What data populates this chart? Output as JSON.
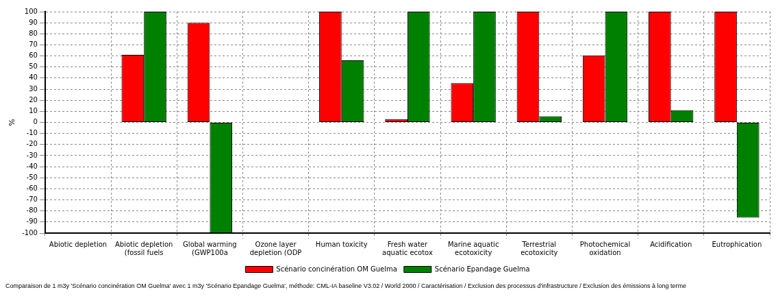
{
  "chart_data": {
    "type": "bar",
    "ylabel": "%",
    "categories": [
      "Abiotic depletion",
      "Abiotic depletion\n(fossil fuels",
      "Global warming\n(GWP100a",
      "Ozone layer\ndepletion (ODP",
      "Human toxicity",
      "Fresh water\naquatic ecotox",
      "Marine aquatic\necotoxicity",
      "Terrestrial\necotoxicity",
      "Photochemical\noxidation",
      "Acidification",
      "Eutrophication"
    ],
    "series": [
      {
        "name": "Scénario concinération OM Guelma",
        "color": "#ff0000",
        "values": [
          0,
          61,
          90,
          0,
          100,
          3,
          35.5,
          100,
          60.5,
          100,
          100
        ]
      },
      {
        "name": "Scénario Epandage Guelma",
        "color": "#008000",
        "values": [
          0,
          100,
          -100,
          0,
          56,
          100,
          100,
          5.5,
          100,
          11,
          -86
        ]
      }
    ],
    "ylim": [
      -100,
      100
    ],
    "yticks": [
      -100,
      -90,
      -80,
      -70,
      -60,
      -50,
      -40,
      -30,
      -20,
      -10,
      0,
      10,
      20,
      30,
      40,
      50,
      60,
      70,
      80,
      90,
      100
    ],
    "grid": true,
    "legend": "bottom",
    "annotations": [
      "Comparaison de 1 m3y 'Scénario concinération OM Guelma' avec 1 m3y 'Scénario Epandage Guelma', méthode: CML-IA baseline V3.02 / World 2000 / Caractérisation / Exclusion des processus d'infrastructure / Exclusion des émissions à long terme"
    ]
  }
}
